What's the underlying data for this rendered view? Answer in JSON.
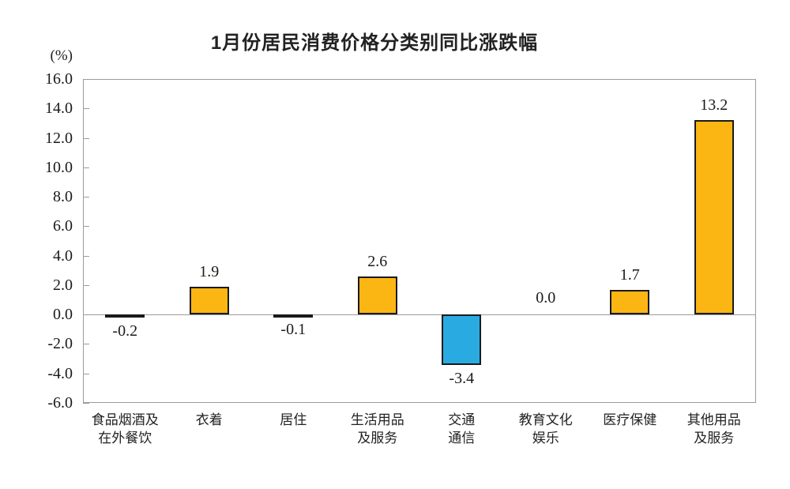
{
  "chart_data": {
    "type": "bar",
    "title": "1月份居民消费价格分类别同比涨跌幅",
    "unit_label": "(%)",
    "categories": [
      "食品烟酒及\n在外餐饮",
      "衣着",
      "居住",
      "生活用品\n及服务",
      "交通\n通信",
      "教育文化\n娱乐",
      "医疗保健",
      "其他用品\n及服务"
    ],
    "values": [
      -0.2,
      1.9,
      -0.1,
      2.6,
      -3.4,
      0.0,
      1.7,
      13.2
    ],
    "value_labels": [
      "-0.2",
      "1.9",
      "-0.1",
      "2.6",
      "-3.4",
      "0.0",
      "1.7",
      "13.2"
    ],
    "xlabel": "",
    "ylabel": "(%)",
    "ylim": [
      -6.0,
      16.0
    ],
    "ytick_step": 2.0,
    "yticks": [
      "16.0",
      "14.0",
      "12.0",
      "10.0",
      "8.0",
      "6.0",
      "4.0",
      "2.0",
      "0.0",
      "-2.0",
      "-4.0",
      "-6.0"
    ],
    "grid": false,
    "legend": false,
    "colors": {
      "positive_fill": "#FBB614",
      "negative_fill": "#29ABE2",
      "bar_border": "#1a1a1a",
      "axis": "#9b9b9b",
      "text": "#1a1a1a"
    }
  }
}
